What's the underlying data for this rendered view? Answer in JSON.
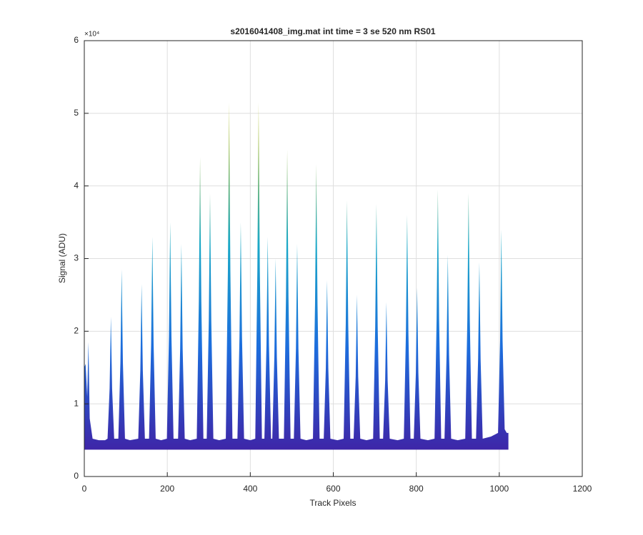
{
  "chart_data": {
    "type": "area",
    "title": "s2016041408_img.mat int time = 3 se  520 nm RS01",
    "xlabel": "Track Pixels",
    "ylabel": "Signal (ADU)",
    "y_exponent_label": "×10⁴",
    "xlim": [
      0,
      1200
    ],
    "xticks": [
      0,
      200,
      400,
      600,
      800,
      1000,
      1200
    ],
    "ylim": [
      0,
      60000
    ],
    "yticks": [
      0,
      {
        "value": 10000,
        "label": "1"
      },
      {
        "value": 20000,
        "label": "2"
      },
      {
        "value": 30000,
        "label": "3"
      },
      {
        "value": 40000,
        "label": "4"
      },
      {
        "value": 50000,
        "label": "5"
      },
      {
        "value": 60000,
        "label": "6"
      }
    ],
    "grid": true,
    "floor": 3700,
    "colormap": [
      "#3e26a8",
      "#1c6ddd",
      "#1ba9c8",
      "#a0be4a",
      "#f9d72c"
    ],
    "x": [
      0,
      3,
      7,
      10,
      13,
      20,
      35,
      50,
      56,
      61,
      64,
      67,
      72,
      82,
      87,
      90,
      93,
      98,
      110,
      130,
      135,
      138,
      141,
      146,
      156,
      161,
      164,
      167,
      172,
      185,
      199,
      204,
      207,
      210,
      215,
      226,
      231,
      234,
      237,
      242,
      255,
      271,
      276,
      279,
      282,
      287,
      295,
      300,
      303,
      306,
      311,
      325,
      341,
      346,
      349,
      352,
      357,
      369,
      374,
      377,
      380,
      385,
      400,
      412,
      417,
      420,
      423,
      428,
      434,
      439,
      442,
      445,
      450,
      453,
      458,
      461,
      464,
      469,
      481,
      486,
      489,
      492,
      497,
      505,
      510,
      513,
      516,
      521,
      535,
      551,
      556,
      559,
      562,
      567,
      577,
      582,
      585,
      588,
      593,
      610,
      625,
      630,
      633,
      636,
      641,
      649,
      654,
      657,
      660,
      665,
      680,
      696,
      701,
      704,
      707,
      712,
      720,
      725,
      728,
      731,
      736,
      755,
      770,
      775,
      778,
      781,
      786,
      794,
      799,
      802,
      805,
      810,
      828,
      844,
      849,
      852,
      855,
      860,
      868,
      873,
      876,
      879,
      884,
      900,
      918,
      923,
      926,
      929,
      934,
      944,
      949,
      952,
      955,
      960,
      980,
      997,
      1002,
      1005,
      1008,
      1013,
      1018,
      1022
    ],
    "values": [
      15000,
      15500,
      11000,
      18500,
      8000,
      5200,
      5000,
      5000,
      5200,
      12100,
      22000,
      12100,
      5200,
      5200,
      15700,
      28500,
      15700,
      5200,
      5000,
      5200,
      14600,
      26500,
      14600,
      5200,
      5200,
      18200,
      33000,
      18200,
      5200,
      5000,
      5200,
      19300,
      35000,
      19300,
      5200,
      5200,
      17600,
      32000,
      17600,
      5200,
      5000,
      5200,
      24200,
      44000,
      24200,
      5200,
      5200,
      21500,
      39000,
      21500,
      5200,
      5000,
      5200,
      28300,
      51500,
      28300,
      5200,
      5200,
      19300,
      35000,
      19300,
      5200,
      5000,
      5200,
      28300,
      51500,
      28300,
      5200,
      5200,
      18200,
      33000,
      18200,
      5200,
      5200,
      16500,
      30000,
      16500,
      5200,
      5200,
      24800,
      45000,
      24800,
      5200,
      5200,
      17600,
      32000,
      17600,
      5200,
      5000,
      5200,
      23700,
      43000,
      23700,
      5200,
      5200,
      14900,
      27000,
      14900,
      5200,
      5000,
      5200,
      20900,
      38000,
      20900,
      5200,
      5200,
      13800,
      25000,
      13800,
      5200,
      5000,
      5200,
      20600,
      37500,
      20600,
      5200,
      5200,
      13200,
      24000,
      13200,
      5200,
      5000,
      5200,
      19800,
      36000,
      19800,
      5200,
      5200,
      14300,
      26000,
      14300,
      5200,
      5000,
      5200,
      21700,
      39500,
      21700,
      5200,
      5200,
      16800,
      30500,
      16800,
      5200,
      5000,
      5200,
      21500,
      39000,
      21500,
      5200,
      5200,
      16200,
      29500,
      16200,
      5200,
      5500,
      6000,
      18700,
      34000,
      18700,
      6500,
      6000,
      6000
    ]
  }
}
